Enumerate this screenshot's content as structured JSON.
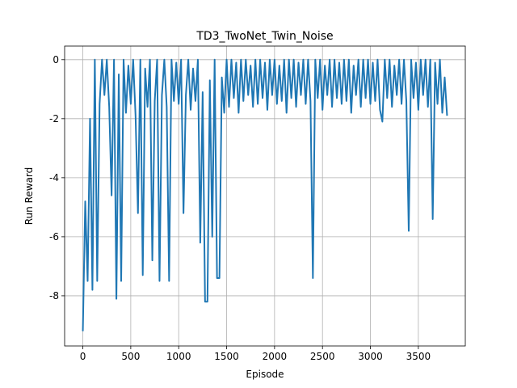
{
  "chart_data": {
    "type": "line",
    "title": "TD3_TwoNet_Twin_Noise",
    "x_label": "Episode",
    "y_label": "Run Reward",
    "color": "#1f77b4",
    "grid": true,
    "xlim": [
      -190,
      3990
    ],
    "ylim": [
      -9.7,
      0.46
    ],
    "xticks": [
      0,
      500,
      1000,
      1500,
      2000,
      2500,
      3000,
      3500
    ],
    "yticks": [
      -8,
      -6,
      -4,
      -2,
      0
    ],
    "x": [
      0,
      25,
      50,
      75,
      100,
      125,
      150,
      175,
      200,
      225,
      250,
      275,
      300,
      325,
      350,
      375,
      400,
      425,
      450,
      475,
      500,
      525,
      550,
      575,
      600,
      625,
      650,
      675,
      700,
      725,
      750,
      775,
      800,
      825,
      850,
      875,
      900,
      925,
      950,
      975,
      1000,
      1025,
      1050,
      1075,
      1100,
      1125,
      1150,
      1175,
      1200,
      1225,
      1250,
      1275,
      1300,
      1325,
      1350,
      1375,
      1400,
      1425,
      1450,
      1475,
      1500,
      1525,
      1550,
      1575,
      1600,
      1625,
      1650,
      1675,
      1700,
      1725,
      1750,
      1775,
      1800,
      1825,
      1850,
      1875,
      1900,
      1925,
      1950,
      1975,
      2000,
      2025,
      2050,
      2075,
      2100,
      2125,
      2150,
      2175,
      2200,
      2225,
      2250,
      2275,
      2300,
      2325,
      2350,
      2375,
      2400,
      2425,
      2450,
      2475,
      2500,
      2525,
      2550,
      2575,
      2600,
      2625,
      2650,
      2675,
      2700,
      2725,
      2750,
      2775,
      2800,
      2825,
      2850,
      2875,
      2900,
      2925,
      2950,
      2975,
      3000,
      3025,
      3050,
      3075,
      3100,
      3125,
      3150,
      3175,
      3200,
      3225,
      3250,
      3275,
      3300,
      3325,
      3350,
      3375,
      3400,
      3425,
      3450,
      3475,
      3500,
      3525,
      3550,
      3575,
      3600,
      3625,
      3650,
      3675,
      3700,
      3725,
      3750,
      3775,
      3800
    ],
    "values": [
      -9.2,
      -4.8,
      -7.5,
      -2.0,
      -7.8,
      0,
      -7.5,
      -1.5,
      0,
      -1.2,
      0,
      -1.6,
      -4.6,
      0,
      -8.1,
      -0.5,
      -7.5,
      0,
      -1.8,
      -0.2,
      -1.5,
      0,
      -1.9,
      -5.2,
      0,
      -7.3,
      -0.3,
      -1.6,
      0,
      -6.8,
      -1.4,
      0,
      -7.5,
      -1.2,
      0,
      -1.6,
      -7.5,
      0,
      -1.4,
      -0.1,
      -1.5,
      0,
      -5.2,
      -1.2,
      0,
      -1.7,
      -0.3,
      -1.4,
      0,
      -6.2,
      -1.1,
      -8.2,
      -8.2,
      -0.7,
      -6.0,
      0,
      -7.4,
      -7.4,
      -0.6,
      -1.8,
      0,
      -1.6,
      0,
      -1.3,
      -0.1,
      -1.8,
      0,
      -1.4,
      0,
      -1.2,
      -0.2,
      -1.6,
      0,
      -1.5,
      0,
      -1.3,
      -0.1,
      -1.7,
      0,
      -1.2,
      0,
      -1.5,
      -0.2,
      -1.4,
      0,
      -1.8,
      0,
      -1.3,
      0,
      -1.6,
      -0.1,
      -1.2,
      0,
      -1.5,
      0,
      -1.4,
      -7.4,
      0,
      -1.3,
      0,
      -1.7,
      -0.2,
      -1.2,
      0,
      -1.6,
      0,
      -1.3,
      -0.1,
      -1.5,
      0,
      -1.4,
      0,
      -1.8,
      -0.2,
      -1.2,
      0,
      -1.6,
      0,
      -1.3,
      0,
      -1.5,
      -0.1,
      -1.4,
      0,
      -1.7,
      -2.1,
      0,
      -1.3,
      0,
      -1.6,
      -0.2,
      -1.2,
      0,
      -1.5,
      0,
      -1.4,
      -5.8,
      0,
      -1.3,
      -0.1,
      -1.7,
      0,
      -1.2,
      0,
      -1.6,
      0,
      -5.4,
      -0.1,
      -1.5,
      0,
      -1.8,
      -0.6,
      -1.9
    ]
  }
}
